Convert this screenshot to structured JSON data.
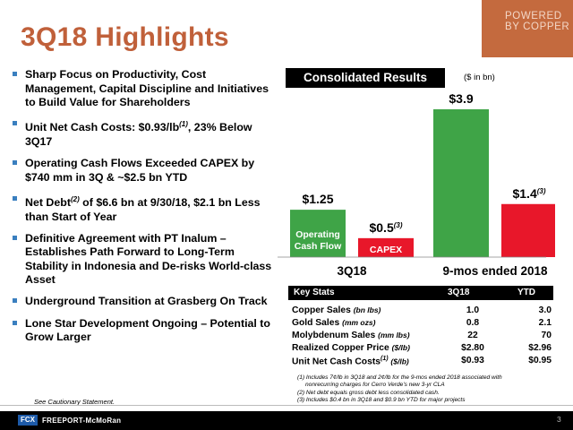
{
  "title": "3Q18 Highlights",
  "brand": {
    "line1": "POWERED",
    "line2": "BY COPPER"
  },
  "bullets": [
    {
      "text": "Sharp Focus on Productivity, Cost Management, Capital Discipline and Initiatives to Build Value for Shareholders"
    },
    {
      "text_a": "Unit Net Cash Costs: $0.93/lb",
      "sup": "(1)",
      "text_b": ", 23% Below 3Q17"
    },
    {
      "text": "Operating Cash Flows Exceeded CAPEX by $740 mm in 3Q & ~$2.5 bn YTD"
    },
    {
      "text_a": "Net Debt",
      "sup": "(2)",
      "text_b": " of $6.6 bn at 9/30/18, $2.1 bn Less than Start of Year"
    },
    {
      "text": "Definitive Agreement with PT Inalum – Establishes Path Forward to Long-Term Stability in Indonesia and De-risks World-class Asset"
    },
    {
      "text": "Underground Transition at Grasberg On Track"
    },
    {
      "text": "Lone Star Development Ongoing – Potential to Grow Larger"
    }
  ],
  "caution": "See Cautionary Statement.",
  "consolidated": {
    "title": "Consolidated Results",
    "unit": "($ in bn)"
  },
  "chart_data": {
    "type": "bar",
    "categories": [
      "3Q18",
      "9-mos ended 2018"
    ],
    "series": [
      {
        "name": "Operating Cash Flow",
        "values": [
          1.25,
          3.9
        ],
        "labels": [
          "$1.25",
          "$3.9"
        ],
        "color": "#3fa447"
      },
      {
        "name": "CAPEX",
        "values": [
          0.5,
          1.4
        ],
        "labels": [
          "$0.5",
          "$1.4"
        ],
        "label_sup": "(3)",
        "color": "#e8172a"
      }
    ],
    "inline_labels": {
      "ocf_line1": "Operating",
      "ocf_line2": "Cash Flow",
      "capex": "CAPEX"
    },
    "ylim": [
      0,
      3.9
    ]
  },
  "key_stats": {
    "header": "Key Stats",
    "col1": "3Q18",
    "col2": "YTD",
    "rows": [
      {
        "label": "Copper Sales",
        "unit": "(bn lbs)",
        "sup": "",
        "q": "1.0",
        "ytd": "3.0"
      },
      {
        "label": "Gold Sales",
        "unit": "(mm ozs)",
        "sup": "",
        "q": "0.8",
        "ytd": "2.1"
      },
      {
        "label": "Molybdenum Sales",
        "unit": "(mm lbs)",
        "sup": "",
        "q": "22",
        "ytd": "70"
      },
      {
        "label": "Realized Copper Price",
        "unit": "($/lb)",
        "sup": "",
        "q": "$2.80",
        "ytd": "$2.96"
      },
      {
        "label": "Unit Net Cash Costs",
        "unit": "($/lb)",
        "sup": "(1)",
        "q": "$0.93",
        "ytd": "$0.95"
      }
    ]
  },
  "footnotes": [
    "(1) Includes 7¢/lb in 3Q18 and 2¢/lb for the 9-mos ended 2018 associated with",
    "nonrecurring charges for Cerro Verde's new 3-yr CLA",
    "(2) Net debt equals gross debt less consolidated cash.",
    "(3) Includes $0.4 bn in 3Q18 and $0.9 bn YTD for major projects"
  ],
  "footer": {
    "logo_mark": "FCX",
    "logo_text": "FREEPORT-McMoRan",
    "page": "3"
  },
  "colors": {
    "title": "#c0603a",
    "brand_bg": "#c46a3e",
    "bullet": "#3a7fbf",
    "ocf": "#3fa447",
    "capex": "#e8172a"
  }
}
